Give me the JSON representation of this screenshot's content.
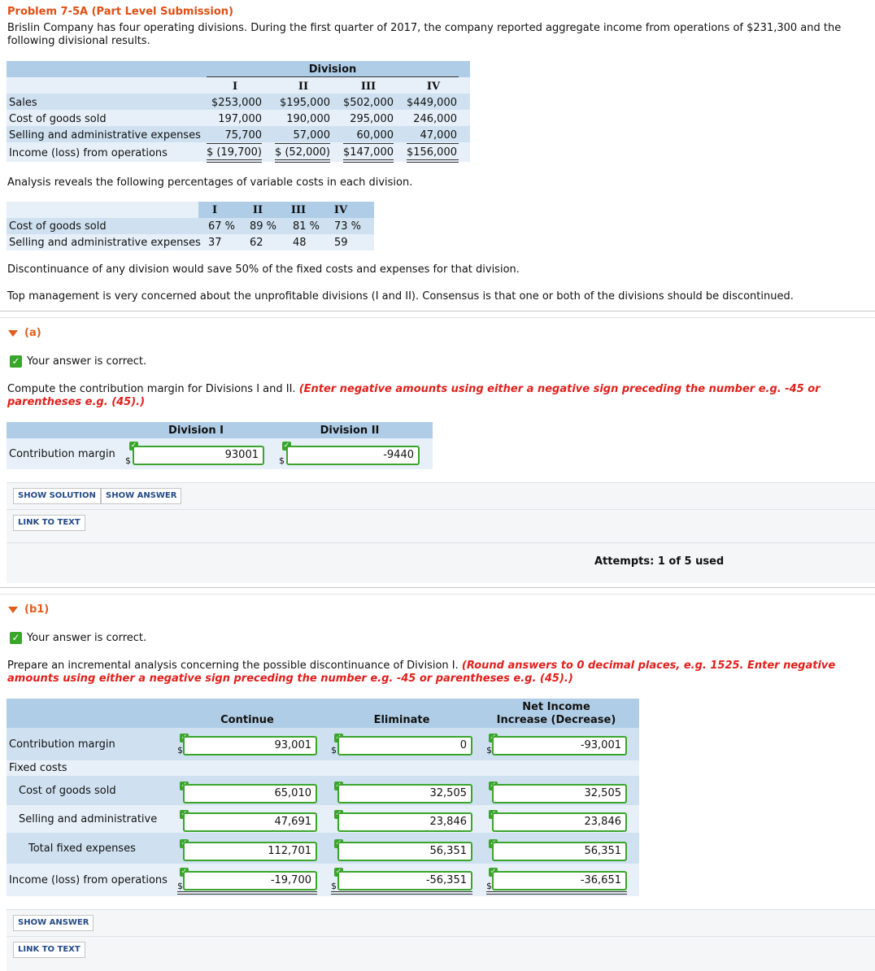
{
  "header": {
    "title": "Problem 7-5A (Part Level Submission)",
    "intro": "Brislin Company has four operating divisions. During the first quarter of 2017, the company reported aggregate income from operations of $231,300 and the following divisional results."
  },
  "table1": {
    "group_header": "Division",
    "cols": [
      "I",
      "II",
      "III",
      "IV"
    ],
    "rows": [
      {
        "label": "Sales",
        "values": [
          "$253,000",
          "$195,000",
          "$502,000",
          "$449,000"
        ]
      },
      {
        "label": "Cost of goods sold",
        "values": [
          "197,000",
          "190,000",
          "295,000",
          "246,000"
        ]
      },
      {
        "label": "Selling and administrative expenses",
        "values": [
          "75,700",
          "57,000",
          "60,000",
          "47,000"
        ]
      },
      {
        "label": "Income (loss) from operations",
        "values": [
          "$ (19,700)",
          "$ (52,000)",
          "$147,000",
          "$156,000"
        ]
      }
    ]
  },
  "analysis_text": "Analysis reveals the following percentages of variable costs in each division.",
  "table2": {
    "cols": [
      "I",
      "II",
      "III",
      "IV"
    ],
    "rows": [
      {
        "label": "Cost of goods sold",
        "values": [
          "67 %",
          "89 %",
          "81 %",
          "73 %"
        ]
      },
      {
        "label": "Selling and administrative expenses",
        "values": [
          "37",
          "62",
          "48",
          "59"
        ]
      }
    ]
  },
  "disc_text": "Discontinuance of any division would save 50% of the fixed costs and expenses for that division.",
  "mgmt_text": "Top management is very concerned about the unprofitable divisions (I and II). Consensus is that one or both of the divisions should be discontinued.",
  "part_a": {
    "label": "(a)",
    "correct": "Your answer is correct.",
    "question": "Compute the contribution margin for Divisions I and II.",
    "note": "(Enter negative amounts using either a negative sign preceding the number e.g. -45 or parentheses e.g. (45).)",
    "col1": "Division I",
    "col2": "Division II",
    "row_label": "Contribution margin",
    "currency": "$",
    "val1": "93001",
    "val2": "-9440",
    "show_solution": "SHOW SOLUTION",
    "show_answer": "SHOW ANSWER",
    "link_to_text": "LINK TO TEXT",
    "attempts": "Attempts: 1 of 5 used"
  },
  "part_b1": {
    "label": "(b1)",
    "correct": "Your answer is correct.",
    "question": "Prepare an incremental analysis concerning the possible discontinuance of Division I.",
    "note": "(Round answers to 0 decimal places, e.g. 1525. Enter negative amounts using either a negative sign preceding the number e.g. -45 or parentheses e.g. (45).)",
    "col_continue": "Continue",
    "col_eliminate": "Eliminate",
    "col_net_1": "Net Income",
    "col_net_2": "Increase (Decrease)",
    "currency": "$",
    "rows": [
      {
        "label": "Contribution margin",
        "values": [
          "93,001",
          "0",
          "-93,001"
        ]
      },
      {
        "label": "Fixed costs"
      },
      {
        "label": "Cost of goods sold",
        "values": [
          "65,010",
          "32,505",
          "32,505"
        ]
      },
      {
        "label": "Selling and administrative",
        "values": [
          "47,691",
          "23,846",
          "23,846"
        ]
      },
      {
        "label": "Total fixed expenses",
        "values": [
          "112,701",
          "56,351",
          "56,351"
        ]
      },
      {
        "label": "Income (loss) from operations",
        "values": [
          "-19,700",
          "-56,351",
          "-36,651"
        ]
      }
    ],
    "show_answer": "SHOW ANSWER",
    "link_to_text": "LINK TO TEXT"
  }
}
